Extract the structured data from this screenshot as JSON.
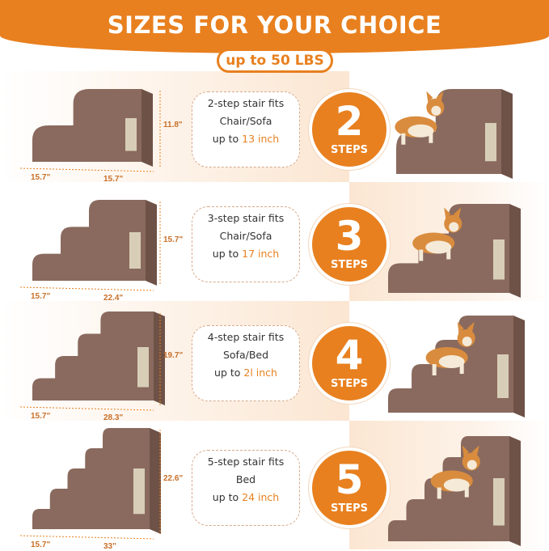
{
  "header": {
    "title": "SIZES FOR YOUR CHOICE",
    "badge": "up to 50 LBS"
  },
  "colors": {
    "accent": "#e8801f",
    "stair": "#8a6a5e",
    "peach": "#fbe6d2"
  },
  "rows": [
    {
      "steps": 2,
      "number": "2",
      "steps_label": "STEPS",
      "line1": "2-step stair fits",
      "line2": "Chair/Sofa",
      "prefix": "up to ",
      "height": "13 inch",
      "dim_h": "11.8\"",
      "dim_d": "15.7\"",
      "dim_w": "15.7\""
    },
    {
      "steps": 3,
      "number": "3",
      "steps_label": "STEPS",
      "line1": "3-step stair fits",
      "line2": "Chair/Sofa",
      "prefix": "up to ",
      "height": "17 inch",
      "dim_h": "15.7\"",
      "dim_d": "15.7\"",
      "dim_w": "22.4\""
    },
    {
      "steps": 4,
      "number": "4",
      "steps_label": "STEPS",
      "line1": "4-step stair fits",
      "line2": "Sofa/Bed",
      "prefix": "up to ",
      "height": "2l inch",
      "dim_h": "19.7\"",
      "dim_d": "15.7\"",
      "dim_w": "28.3\""
    },
    {
      "steps": 5,
      "number": "5",
      "steps_label": "STEPS",
      "line1": "5-step stair fits",
      "line2": "Bed",
      "prefix": "up to ",
      "height": "24 inch",
      "dim_h": "22.6\"",
      "dim_d": "15.7\"",
      "dim_w": "33\""
    }
  ]
}
